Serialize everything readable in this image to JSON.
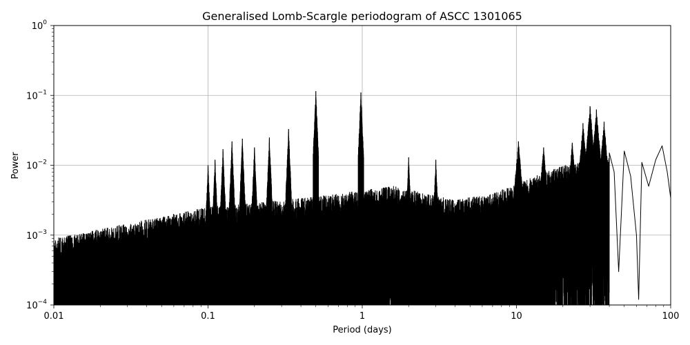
{
  "chart_data": {
    "type": "line",
    "title": "Generalised Lomb-Scargle periodogram of ASCC 1301065",
    "xlabel": "Period (days)",
    "ylabel": "Power",
    "xscale": "log",
    "yscale": "log",
    "xlim": [
      0.01,
      100
    ],
    "ylim": [
      0.0001,
      1
    ],
    "grid": true,
    "x_ticks": [
      0.01,
      0.1,
      1,
      10,
      100
    ],
    "x_tick_labels": [
      "0.01",
      "0.1",
      "1",
      "10",
      "100"
    ],
    "y_ticks": [
      0.0001,
      0.001,
      0.01,
      0.1,
      1
    ],
    "y_tick_labels": [
      {
        "base": "10",
        "exp": "−4"
      },
      {
        "base": "10",
        "exp": "−3"
      },
      {
        "base": "10",
        "exp": "−2"
      },
      {
        "base": "10",
        "exp": "−1"
      },
      {
        "base": "10",
        "exp": "0"
      }
    ],
    "line_color": "#000000",
    "series": [
      {
        "peaks": [
          {
            "period": 0.1,
            "power": 0.01
          },
          {
            "period": 0.111,
            "power": 0.012
          },
          {
            "period": 0.125,
            "power": 0.017
          },
          {
            "period": 0.143,
            "power": 0.022
          },
          {
            "period": 0.167,
            "power": 0.024
          },
          {
            "period": 0.2,
            "power": 0.018
          },
          {
            "period": 0.25,
            "power": 0.025
          },
          {
            "period": 0.333,
            "power": 0.033
          },
          {
            "period": 0.5,
            "power": 0.115
          },
          {
            "period": 0.98,
            "power": 0.11
          },
          {
            "period": 2.0,
            "power": 0.013
          },
          {
            "period": 3.0,
            "power": 0.012
          },
          {
            "period": 10.3,
            "power": 0.022
          },
          {
            "period": 15.0,
            "power": 0.018
          },
          {
            "period": 23.0,
            "power": 0.021
          },
          {
            "period": 27.0,
            "power": 0.04
          },
          {
            "period": 30.0,
            "power": 0.07
          },
          {
            "period": 33.0,
            "power": 0.063
          },
          {
            "period": 37.0,
            "power": 0.042
          },
          {
            "period": 43.0,
            "power": 0.015
          },
          {
            "period": 50.0,
            "power": 0.016
          },
          {
            "period": 65.0,
            "power": 0.011
          },
          {
            "period": 88.0,
            "power": 0.019
          }
        ],
        "smooth_curve": [
          [
            40,
            0.015
          ],
          [
            43,
            0.008
          ],
          [
            46,
            0.0003
          ],
          [
            50,
            0.016
          ],
          [
            55,
            0.007
          ],
          [
            60,
            0.001
          ],
          [
            62,
            0.00012
          ],
          [
            65,
            0.011
          ],
          [
            72,
            0.005
          ],
          [
            80,
            0.012
          ],
          [
            88,
            0.019
          ],
          [
            95,
            0.008
          ],
          [
            100,
            0.0034
          ]
        ]
      }
    ]
  }
}
